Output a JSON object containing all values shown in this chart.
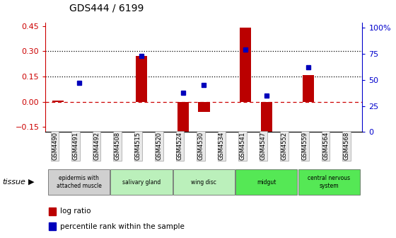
{
  "title": "GDS444 / 6199",
  "samples": [
    "GSM4490",
    "GSM4491",
    "GSM4492",
    "GSM4508",
    "GSM4515",
    "GSM4520",
    "GSM4524",
    "GSM4530",
    "GSM4534",
    "GSM4541",
    "GSM4547",
    "GSM4552",
    "GSM4559",
    "GSM4564",
    "GSM4568"
  ],
  "log_ratio": [
    0.005,
    0.0,
    0.0,
    0.0,
    0.27,
    0.0,
    -0.23,
    -0.06,
    0.0,
    0.44,
    -0.19,
    0.0,
    0.16,
    0.0,
    0.0
  ],
  "percentile_pct": [
    null,
    47,
    null,
    null,
    73,
    null,
    38,
    45,
    null,
    79,
    35,
    null,
    62,
    null,
    null
  ],
  "tissues": [
    {
      "name": "epidermis with\nattached muscle",
      "start": 0,
      "end": 3,
      "color": "#d0d0d0"
    },
    {
      "name": "salivary gland",
      "start": 3,
      "end": 6,
      "color": "#bbf0bb"
    },
    {
      "name": "wing disc",
      "start": 6,
      "end": 9,
      "color": "#bbf0bb"
    },
    {
      "name": "midgut",
      "start": 9,
      "end": 12,
      "color": "#55e855"
    },
    {
      "name": "central nervous\nsystem",
      "start": 12,
      "end": 15,
      "color": "#55e855"
    }
  ],
  "ylim_left": [
    -0.18,
    0.47
  ],
  "ylim_right": [
    0,
    105
  ],
  "yticks_left": [
    -0.15,
    0.0,
    0.15,
    0.3,
    0.45
  ],
  "yticks_right": [
    0,
    25,
    50,
    75,
    100
  ],
  "hlines": [
    0.15,
    0.3
  ],
  "bar_color": "#bb0000",
  "dot_color": "#0000bb",
  "zero_line_color": "#cc0000",
  "bg_color": "#ffffff",
  "left_label_color": "#cc0000",
  "right_label_color": "#0000cc"
}
